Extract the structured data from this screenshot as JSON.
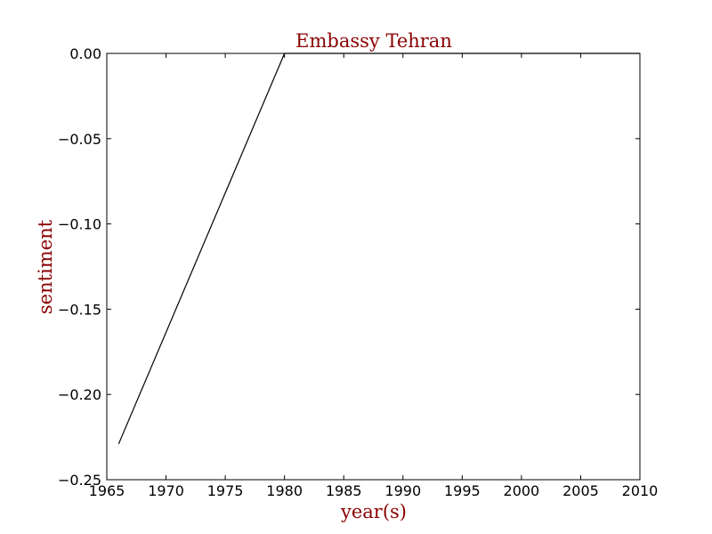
{
  "colors": {
    "text_accent": "#8b0000",
    "line": "#000000",
    "axes": "#000000",
    "background": "#ffffff"
  },
  "chart_data": {
    "type": "line",
    "title": "Embassy Tehran",
    "xlabel": "year(s)",
    "ylabel": "sentiment",
    "xlim": [
      1965,
      2010
    ],
    "ylim": [
      -0.25,
      0.0
    ],
    "xticks": [
      1965,
      1970,
      1975,
      1980,
      1985,
      1990,
      1995,
      2000,
      2005,
      2010
    ],
    "xtick_labels": [
      "1965",
      "1970",
      "1975",
      "1980",
      "1985",
      "1990",
      "1995",
      "2000",
      "2005",
      "2010"
    ],
    "yticks": [
      0.0,
      -0.05,
      -0.1,
      -0.15,
      -0.2,
      -0.25
    ],
    "ytick_labels": [
      "0.00",
      "−0.05",
      "−0.10",
      "−0.15",
      "−0.20",
      "−0.25"
    ],
    "grid": false,
    "series": [
      {
        "x": [
          1966,
          1980,
          2010
        ],
        "y": [
          -0.229,
          0.0,
          0.0
        ]
      }
    ]
  }
}
